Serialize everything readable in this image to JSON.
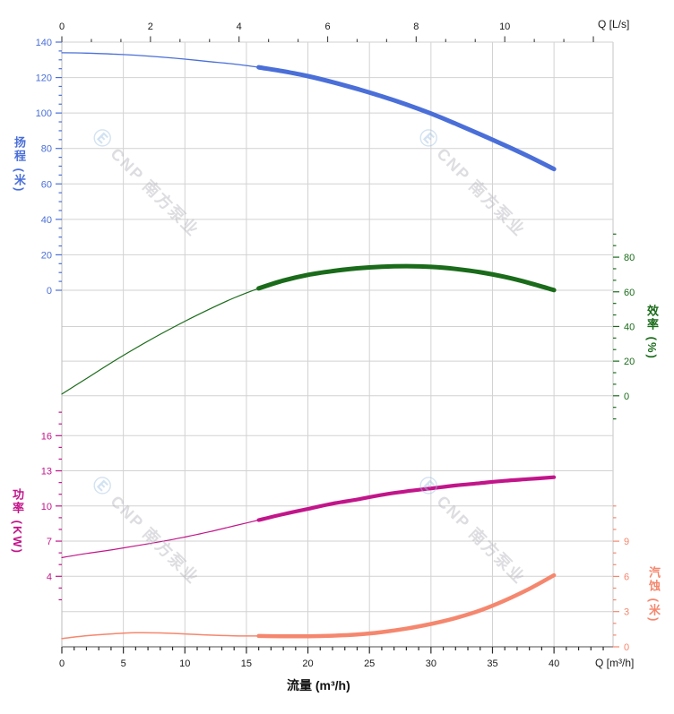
{
  "watermark": {
    "logo_glyph": "Ⓔ",
    "text": "CNP 南方泵业"
  },
  "chart_data": {
    "type": "line",
    "title": "",
    "grid": true,
    "legend": "none",
    "axes": {
      "flow_bottom": {
        "label": "流量 (m³/h)",
        "unit_label": "Q [m³/h]",
        "range": [
          0,
          44.8
        ],
        "ticks": [
          0,
          5,
          10,
          15,
          20,
          25,
          30,
          35,
          40
        ],
        "minor_step": 1,
        "color": "#1a1a1a"
      },
      "flow_top": {
        "unit_label": "Q [L/s]",
        "range": [
          0,
          12.45
        ],
        "ticks": [
          0,
          2,
          4,
          6,
          8,
          10
        ],
        "minor_per_major": 3,
        "color": "#1a1a1a"
      },
      "head_left": {
        "label": "扬程 (米)",
        "range": [
          0,
          140
        ],
        "ticks": [
          0,
          20,
          40,
          60,
          80,
          100,
          120,
          140
        ],
        "minor_step": 5,
        "color": "#4a6fd8"
      },
      "eff_right": {
        "label": "效率 (%)",
        "range": [
          0,
          80
        ],
        "ticks": [
          0,
          20,
          40,
          60,
          80
        ],
        "minor_per_major": 3,
        "color": "#1a6b1a"
      },
      "power_left": {
        "label": "功率 (KW)",
        "range": [
          4,
          16
        ],
        "ticks": [
          4,
          7,
          10,
          13,
          16
        ],
        "minor_step": 1,
        "color": "#c2158a"
      },
      "npsh_right": {
        "label": "汽蚀 (米)",
        "range": [
          0,
          9
        ],
        "ticks": [
          0,
          3,
          6,
          9
        ],
        "minor_step": 1,
        "color": "#f5876e"
      }
    },
    "duty_range_m3h": [
      16,
      40
    ],
    "series": [
      {
        "name": "head",
        "label": "扬程",
        "axis": "head_left",
        "color": "#4a6fd8",
        "thin_width": 1.3,
        "thick_width": 5,
        "points": [
          [
            0,
            134
          ],
          [
            2,
            133.8
          ],
          [
            4,
            133.3
          ],
          [
            6,
            132.6
          ],
          [
            8,
            131.6
          ],
          [
            10,
            130.4
          ],
          [
            12,
            129
          ],
          [
            14,
            127.6
          ],
          [
            16,
            125.8
          ],
          [
            18,
            123.5
          ],
          [
            20,
            120.8
          ],
          [
            22,
            117.4
          ],
          [
            24,
            113.6
          ],
          [
            26,
            109.4
          ],
          [
            28,
            104.8
          ],
          [
            30,
            99.7
          ],
          [
            32,
            94
          ],
          [
            34,
            88
          ],
          [
            36,
            81.8
          ],
          [
            38,
            75.3
          ],
          [
            40,
            68.4
          ]
        ]
      },
      {
        "name": "efficiency",
        "label": "效率",
        "axis": "eff_right",
        "color": "#1a6b1a",
        "thin_width": 1.2,
        "thick_width": 5,
        "points": [
          [
            0,
            1
          ],
          [
            2,
            10
          ],
          [
            4,
            19
          ],
          [
            6,
            27.5
          ],
          [
            8,
            35.5
          ],
          [
            10,
            43
          ],
          [
            12,
            50
          ],
          [
            14,
            56.5
          ],
          [
            16,
            62
          ],
          [
            18,
            66.5
          ],
          [
            20,
            69.8
          ],
          [
            22,
            72
          ],
          [
            24,
            73.6
          ],
          [
            26,
            74.5
          ],
          [
            28,
            74.8
          ],
          [
            30,
            74.4
          ],
          [
            32,
            73.2
          ],
          [
            34,
            71.3
          ],
          [
            36,
            68.6
          ],
          [
            38,
            65.1
          ],
          [
            40,
            61
          ]
        ]
      },
      {
        "name": "power",
        "label": "功率",
        "axis": "power_left",
        "color": "#c2158a",
        "thin_width": 1.2,
        "thick_width": 4.2,
        "points": [
          [
            0,
            5.6
          ],
          [
            2,
            5.95
          ],
          [
            4,
            6.25
          ],
          [
            6,
            6.6
          ],
          [
            8,
            6.95
          ],
          [
            10,
            7.35
          ],
          [
            12,
            7.8
          ],
          [
            14,
            8.3
          ],
          [
            16,
            8.8
          ],
          [
            18,
            9.3
          ],
          [
            20,
            9.75
          ],
          [
            22,
            10.2
          ],
          [
            24,
            10.55
          ],
          [
            26,
            10.95
          ],
          [
            28,
            11.25
          ],
          [
            30,
            11.5
          ],
          [
            32,
            11.75
          ],
          [
            34,
            11.95
          ],
          [
            36,
            12.15
          ],
          [
            38,
            12.3
          ],
          [
            40,
            12.45
          ]
        ]
      },
      {
        "name": "npsh",
        "label": "汽蚀",
        "axis": "npsh_right",
        "color": "#f5876e",
        "thin_width": 1.5,
        "thick_width": 4.5,
        "points": [
          [
            0,
            0.7
          ],
          [
            2,
            0.95
          ],
          [
            4,
            1.1
          ],
          [
            6,
            1.2
          ],
          [
            8,
            1.18
          ],
          [
            10,
            1.1
          ],
          [
            12,
            1.0
          ],
          [
            14,
            0.94
          ],
          [
            16,
            0.92
          ],
          [
            18,
            0.9
          ],
          [
            20,
            0.9
          ],
          [
            22,
            0.95
          ],
          [
            24,
            1.05
          ],
          [
            26,
            1.25
          ],
          [
            28,
            1.55
          ],
          [
            30,
            1.95
          ],
          [
            32,
            2.45
          ],
          [
            34,
            3.1
          ],
          [
            36,
            3.95
          ],
          [
            38,
            4.95
          ],
          [
            40,
            6.1
          ]
        ]
      }
    ]
  }
}
